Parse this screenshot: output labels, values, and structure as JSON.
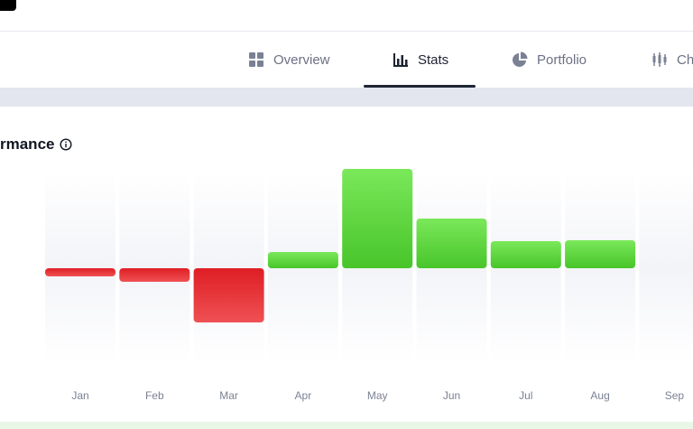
{
  "tabs": [
    {
      "label": "Overview",
      "icon": "grid-icon",
      "active": false
    },
    {
      "label": "Stats",
      "icon": "bar-chart-icon",
      "active": true
    },
    {
      "label": "Portfolio",
      "icon": "pie-chart-icon",
      "active": false
    },
    {
      "label": "Ch",
      "icon": "candlestick-icon",
      "active": false
    }
  ],
  "card": {
    "title": "rmance"
  },
  "colors": {
    "positive": "#55d13a",
    "negative": "#e4262b",
    "text_muted": "#7b8194"
  },
  "chart_data": {
    "type": "bar",
    "categories": [
      "Jan",
      "Feb",
      "Mar",
      "Apr",
      "May",
      "Jun",
      "Jul",
      "Aug",
      "Sep"
    ],
    "values": [
      -0.9,
      -1.5,
      -6.0,
      1.8,
      11.0,
      5.5,
      3.0,
      3.1,
      null
    ],
    "title": "",
    "xlabel": "",
    "ylabel": "",
    "grid": false,
    "legend": "none"
  }
}
